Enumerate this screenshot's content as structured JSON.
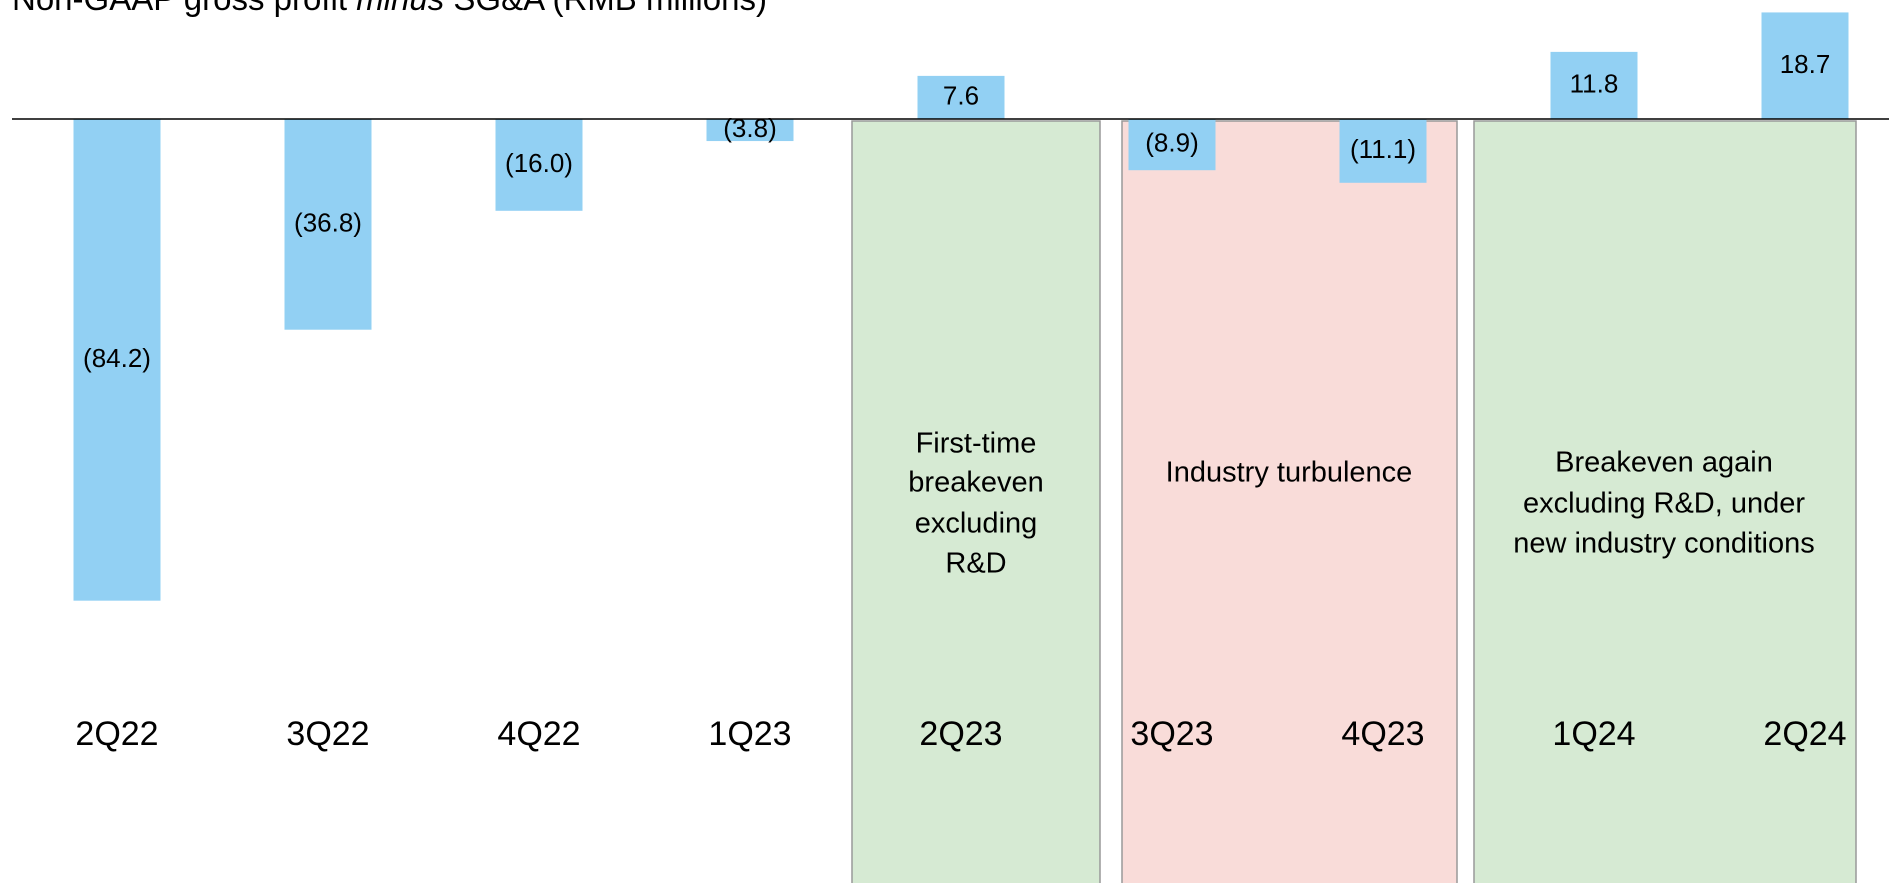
{
  "chart_data": {
    "type": "bar",
    "title": {
      "before": "Non-GAAP gross profit ",
      "emphasis": "minus",
      "after": " SG&A (RMB millions)"
    },
    "categories": [
      "2Q22",
      "3Q22",
      "4Q22",
      "1Q23",
      "2Q23",
      "3Q23",
      "4Q23",
      "1Q24",
      "2Q24"
    ],
    "values": [
      -84.2,
      -36.8,
      -16.0,
      -3.8,
      7.6,
      -8.9,
      -11.1,
      11.8,
      18.7
    ],
    "value_labels": [
      "(84.2)",
      "(36.8)",
      "(16.0)",
      "(3.8)",
      "7.6",
      "(8.9)",
      "(11.1)",
      "11.8",
      "18.7"
    ],
    "color": "#92d0f3",
    "ylim": [
      -100,
      20
    ],
    "annotations": [
      {
        "lines": [
          "First-time",
          "breakeven",
          "excluding",
          "R&D"
        ],
        "color": "#d6ead3"
      },
      {
        "lines": [
          "Industry turbulence"
        ],
        "color": "#f9dcd9"
      },
      {
        "lines": [
          "Breakeven again",
          "excluding R&D, under",
          "new industry conditions"
        ],
        "color": "#d6ead3"
      }
    ]
  }
}
